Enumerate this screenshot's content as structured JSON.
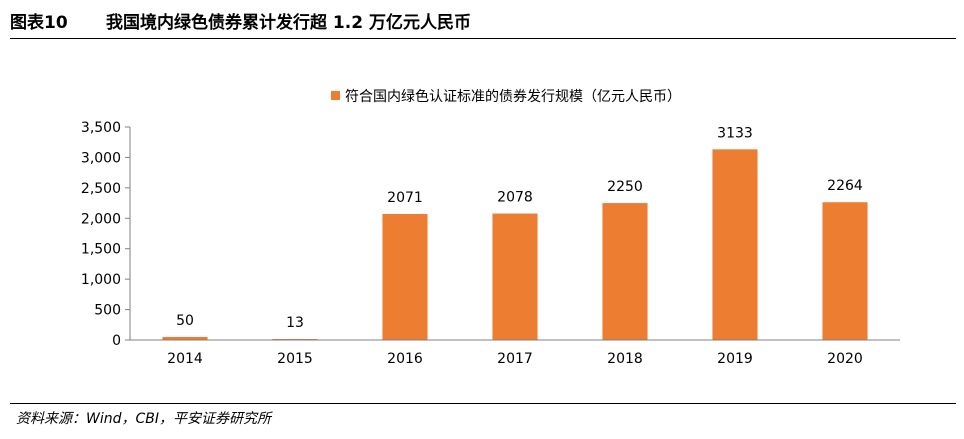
{
  "header": {
    "figure_label": "图表10",
    "title": "我国境内绿色债券累计发行超 1.2 万亿元人民币"
  },
  "chart_data": {
    "type": "bar",
    "title": "",
    "xlabel": "",
    "ylabel": "",
    "categories": [
      "2014",
      "2015",
      "2016",
      "2017",
      "2018",
      "2019",
      "2020"
    ],
    "series": [
      {
        "name": "符合国内绿色认证标准的债券发行规模（亿元人民币）",
        "values": [
          50,
          13,
          2071,
          2078,
          2250,
          3133,
          2264
        ],
        "data_labels": [
          "50",
          "13",
          "2071",
          "2078",
          "2250",
          "3133",
          "2264"
        ],
        "color": "#ED7D31"
      }
    ],
    "ylim": [
      0,
      3500
    ],
    "yticks": [
      0,
      500,
      1000,
      1500,
      2000,
      2500,
      3000,
      3500
    ],
    "ytick_labels": [
      "0",
      "500",
      "1,000",
      "1,500",
      "2,000",
      "2,500",
      "3,000",
      "3,500"
    ],
    "legend_position": "top-center",
    "grid": false,
    "axis_color": "#808080"
  },
  "footer": {
    "source": "资料来源：Wind，CBI，平安证券研究所"
  }
}
